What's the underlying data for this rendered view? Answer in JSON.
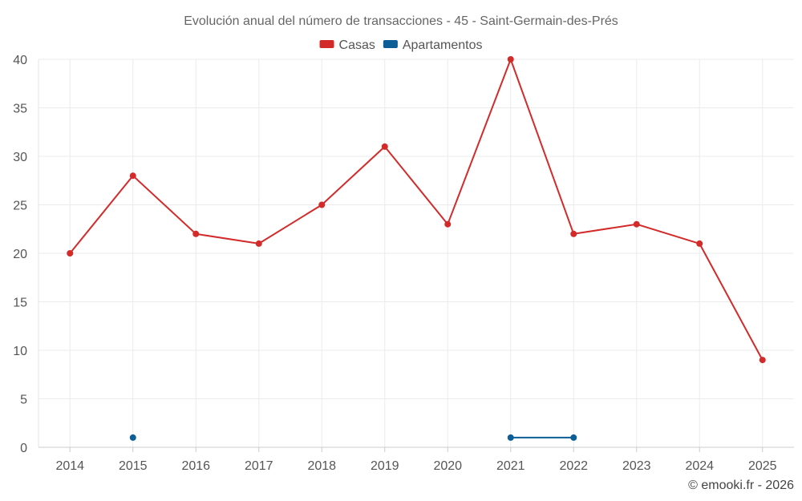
{
  "chart_data": {
    "type": "line",
    "title": "Evolución anual del número de transacciones - 45 - Saint-Germain-des-Prés",
    "xlabel": "",
    "ylabel": "",
    "categories": [
      "2014",
      "2015",
      "2016",
      "2017",
      "2018",
      "2019",
      "2020",
      "2021",
      "2022",
      "2023",
      "2024",
      "2025"
    ],
    "ylim": [
      0,
      40
    ],
    "yticks": [
      0,
      5,
      10,
      15,
      20,
      25,
      30,
      35,
      40
    ],
    "grid": true,
    "legend_position": "top-center",
    "series": [
      {
        "name": "Casas",
        "color": "#d32a2a",
        "values": [
          20,
          28,
          22,
          21,
          25,
          31,
          23,
          40,
          22,
          23,
          21,
          9
        ]
      },
      {
        "name": "Apartamentos",
        "color": "#0b5e96",
        "values": [
          null,
          1,
          null,
          null,
          null,
          null,
          null,
          1,
          1,
          null,
          null,
          null
        ]
      }
    ]
  },
  "footer": {
    "credit": "© emooki.fr - 2026"
  }
}
